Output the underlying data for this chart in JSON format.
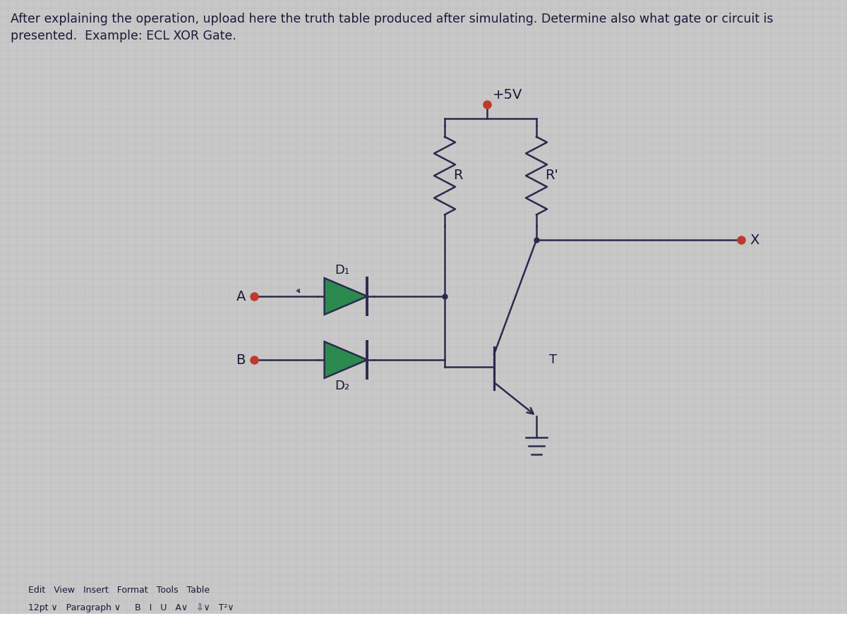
{
  "bg_color": "#c8c8c8",
  "grid_color": "#b8b8b8",
  "line_color": "#2a2a50",
  "text_color": "#1a1a3a",
  "node_color": "#c0392b",
  "diode_color": "#2d8a4e",
  "vcc_label": "+5V",
  "R_label": "R",
  "Rprime_label": "R'",
  "D1_label": "D₁",
  "D2_label": "D₂",
  "A_label": "A",
  "B_label": "B",
  "X_label": "X",
  "T_label": "T",
  "header_line1": "After explaining the operation, upload here the truth table produced after simulating. Determine also what gate or circuit is",
  "header_line2": "presented.  Example: ECL XOR Gate.",
  "toolbar_text1": "Edit   View   Insert   Format   Tools   Table",
  "toolbar_text2": "12pt ∨   Paragraph ∨     B   I   U   A∨   ⇩∨   T²∨",
  "fig_width": 12,
  "fig_height": 9
}
